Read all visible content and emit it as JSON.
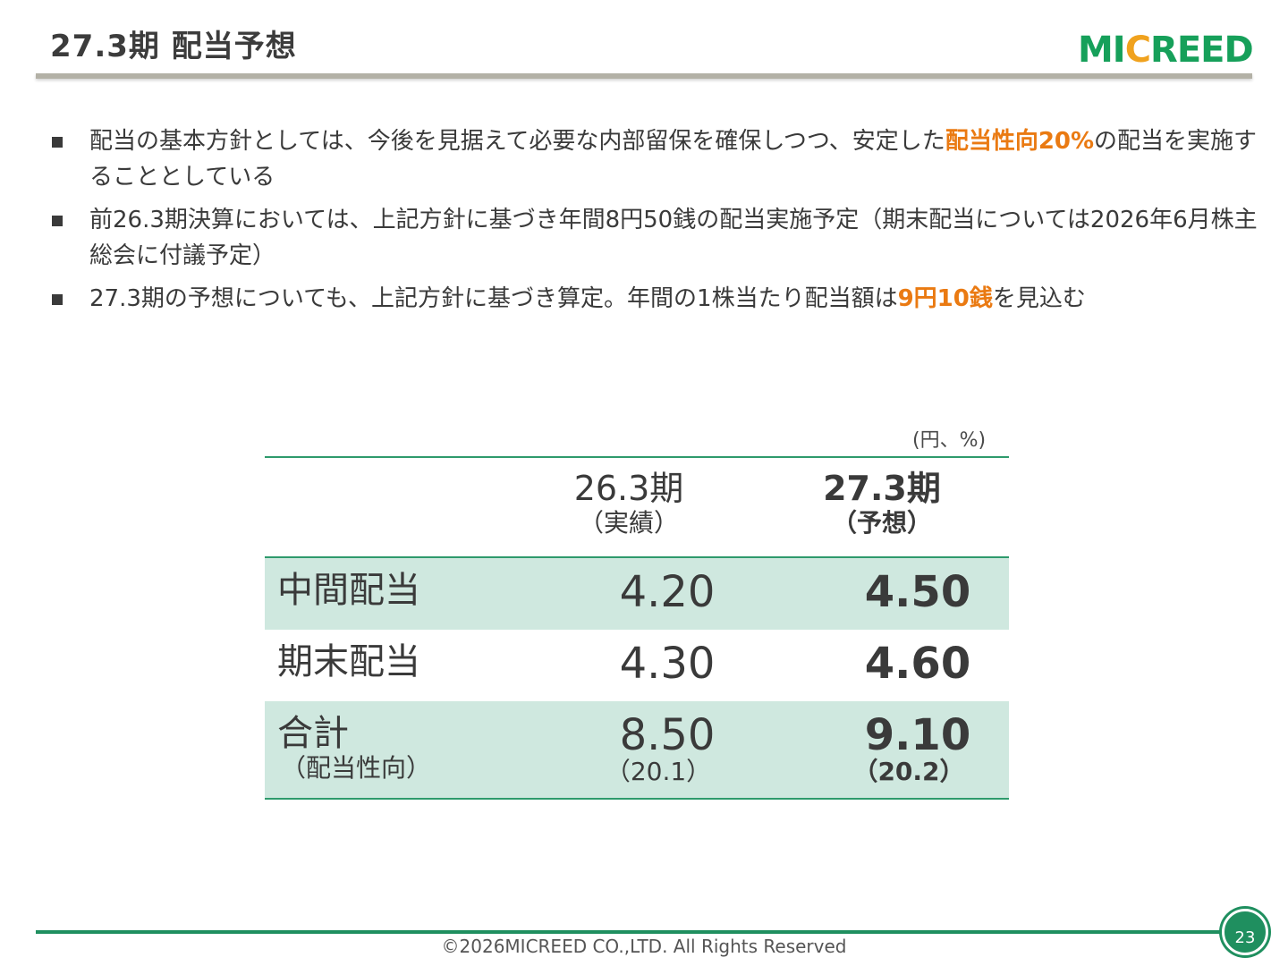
{
  "header": {
    "title": "27.3期 配当予想",
    "logo_parts": [
      "MI",
      "C",
      "REED"
    ]
  },
  "bullets": [
    {
      "before": "配当の基本方針としては、今後を見据えて必要な内部留保を確保しつつ、安定した",
      "highlight": "配当性向20%",
      "after": "の配当を実施することとしている"
    },
    {
      "before": "前26.3期決算においては、上記方針に基づき年間8円50銭の配当実施予定（期末配当については2026年6月株主総会に付議予定）",
      "highlight": "",
      "after": ""
    },
    {
      "before": "27.3期の予想についても、上記方針に基づき算定。年間の1株当たり配当額は",
      "highlight": "9円10銭",
      "after": "を見込む"
    }
  ],
  "table": {
    "unit": "(円、%)",
    "columns": [
      {
        "main": "26.3期",
        "sub": "（実績）"
      },
      {
        "main": "27.3期",
        "sub": "（予想）"
      }
    ],
    "rows": [
      {
        "label": "中間配当",
        "prev": "4.20",
        "curr": "4.50"
      },
      {
        "label": "期末配当",
        "prev": "4.30",
        "curr": "4.60"
      },
      {
        "label": "合計",
        "label_sub": "（配当性向）",
        "prev": "8.50",
        "prev_sub": "（20.1）",
        "curr": "9.10",
        "curr_sub": "（20.2）"
      }
    ]
  },
  "footer": {
    "copyright": "©2026MICREED CO.,LTD. All Rights Reserved",
    "page_number": "23"
  },
  "colors": {
    "accent_green": "#1f8f5f",
    "highlight_orange": "#ea7a12",
    "row_shade": "#cfe8df",
    "logo_green": "#16a05a",
    "logo_orange": "#f0a21e"
  }
}
